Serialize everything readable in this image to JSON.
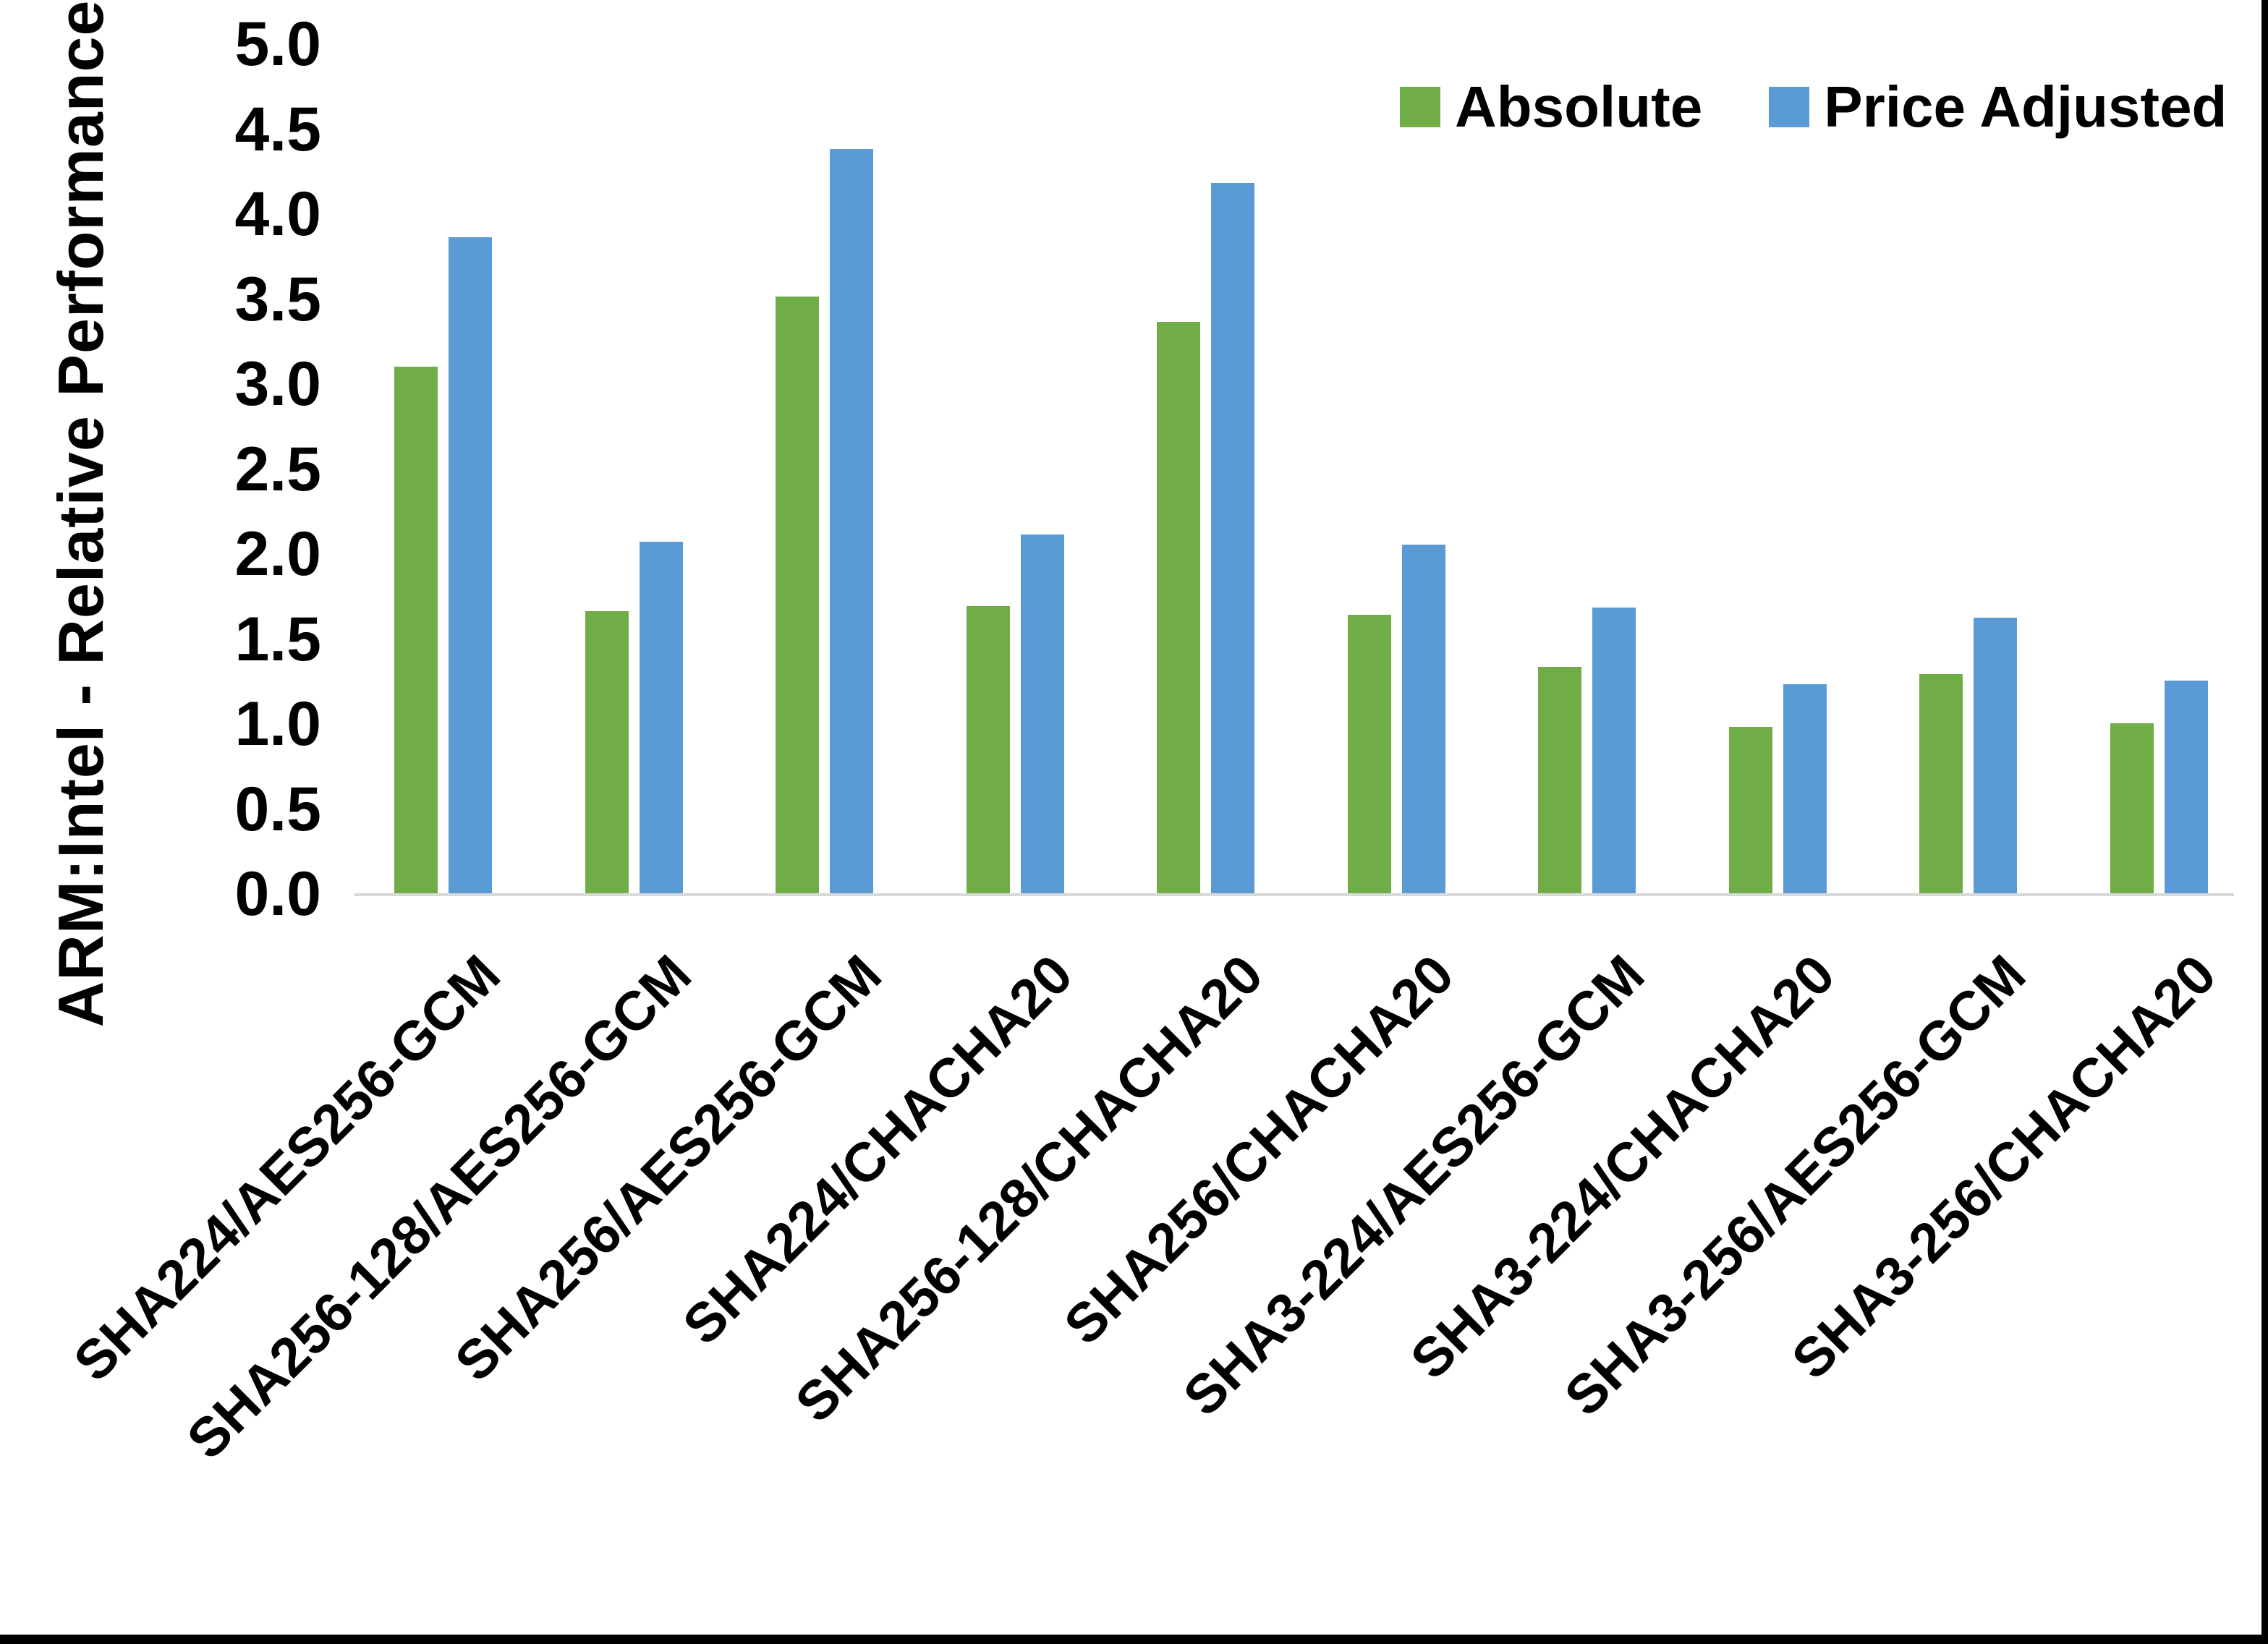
{
  "figure": {
    "background_color": "#ffffff",
    "border_color": "#000000",
    "text_color": "#000000",
    "axis_line_color": "#d9d9d9"
  },
  "legend": {
    "items": [
      {
        "label": "Absolute",
        "color": "#70AD47"
      },
      {
        "label": "Price Adjusted",
        "color": "#5B9BD5"
      }
    ]
  },
  "chart_data": {
    "type": "bar",
    "title": "",
    "xlabel": "",
    "ylabel": "ARM:Intel - Relative Performance",
    "ylim": [
      0,
      5
    ],
    "ytick_labels": [
      "5.0",
      "4.5",
      "4.0",
      "3.5",
      "3.0",
      "2.5",
      "2.0",
      "1.5",
      "1.0",
      "0.5",
      "0.0"
    ],
    "ytick_values": [
      5.0,
      4.5,
      4.0,
      3.5,
      3.0,
      2.5,
      2.0,
      1.5,
      1.0,
      0.5,
      0.0
    ],
    "grid": false,
    "legend_position": "top-right",
    "xtick_rotation_deg": 45,
    "categories": [
      "SHA224/AES256-GCM",
      "SHA256-128/AES256-GCM",
      "SHA256/AES256-GCM",
      "SHA224/CHACHA20",
      "SHA256-128/CHACHA20",
      "SHA256/CHACHA20",
      "SHA3-224/AES256-GCM",
      "SHA3-224/CHACHA20",
      "SHA3-256/AES256-GCM",
      "SHA3-256/CHACHA20"
    ],
    "series": [
      {
        "name": "Absolute",
        "color": "#70AD47",
        "values": [
          3.1,
          1.66,
          3.51,
          1.69,
          3.36,
          1.64,
          1.33,
          0.98,
          1.29,
          1.0
        ]
      },
      {
        "name": "Price Adjusted",
        "color": "#5B9BD5",
        "values": [
          3.86,
          2.07,
          4.38,
          2.11,
          4.18,
          2.05,
          1.68,
          1.23,
          1.62,
          1.25
        ]
      }
    ]
  }
}
